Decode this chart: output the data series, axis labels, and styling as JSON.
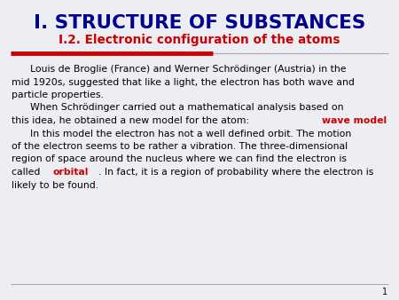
{
  "title": "I. STRUCTURE OF SUBSTANCES",
  "subtitle": "I.2. Electronic configuration of the atoms",
  "title_color": "#00008B",
  "subtitle_color": "#CC0000",
  "bg_color": "#EDEDF4",
  "text_color": "#000000",
  "red_color": "#CC0000",
  "page_number": "1",
  "title_fontsize": 15.5,
  "subtitle_fontsize": 9.8,
  "body_fontsize": 7.8
}
